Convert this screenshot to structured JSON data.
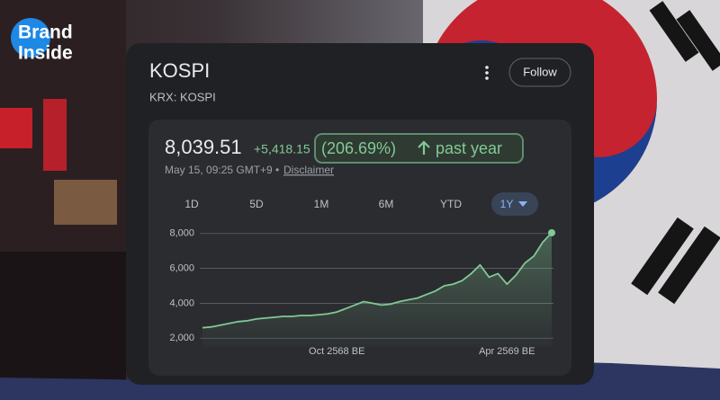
{
  "brand": {
    "line1": "Brand",
    "line2": "Inside"
  },
  "header": {
    "title": "KOSPI",
    "exchange": "KRX: KOSPI",
    "follow": "Follow"
  },
  "quote": {
    "price": "8,039.51",
    "change": "+5,418.15",
    "percent": "(206.69%)",
    "period": "past year",
    "timestamp": "May 15, 09:25 GMT+9 •",
    "disclaimer": "Disclaimer"
  },
  "ranges": [
    "1D",
    "5D",
    "1M",
    "6M",
    "YTD",
    "1Y"
  ],
  "chart_data": {
    "type": "line",
    "categories": [
      null,
      null,
      null,
      null,
      null,
      null,
      null,
      null,
      null,
      null,
      null,
      null,
      null,
      null,
      null,
      "Oct 2568 BE",
      null,
      null,
      null,
      null,
      null,
      null,
      null,
      null,
      null,
      null,
      null,
      null,
      null,
      null,
      null,
      null,
      null,
      null,
      "Apr 2569 BE",
      null,
      null,
      null,
      null,
      null
    ],
    "values": [
      2600,
      2650,
      2750,
      2850,
      2950,
      3000,
      3100,
      3150,
      3200,
      3250,
      3250,
      3300,
      3300,
      3350,
      3400,
      3500,
      3700,
      3900,
      4100,
      4000,
      3900,
      3950,
      4100,
      4200,
      4300,
      4500,
      4700,
      5000,
      5100,
      5300,
      5700,
      6200,
      5500,
      5700,
      5100,
      5600,
      6300,
      6700,
      7500,
      8039.51
    ],
    "color": "#81c995",
    "ylim": [
      1500,
      8500
    ],
    "yticks": [
      {
        "value": 2000,
        "label": "2,000"
      },
      {
        "value": 4000,
        "label": "4,000"
      },
      {
        "value": 6000,
        "label": "6,000"
      },
      {
        "value": 8000,
        "label": "8,000"
      }
    ],
    "grid": true
  }
}
